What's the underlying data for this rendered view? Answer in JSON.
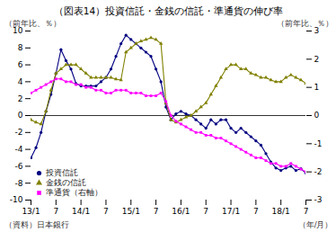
{
  "chart_data": {
    "type": "line",
    "title": "（図表14）投資信託・金銭の信託・準通貨の伸び率",
    "ylabel": "（前年比、％）",
    "y2label": "（前年比、％）",
    "xlabel": "（年/月）",
    "caption": "（資料）日本銀行",
    "categories": [
      "13/1",
      null,
      null,
      null,
      null,
      "7",
      null,
      null,
      null,
      null,
      "14/1",
      null,
      null,
      null,
      null,
      "7",
      null,
      null,
      null,
      null,
      "15/1",
      null,
      null,
      null,
      null,
      "7",
      null,
      null,
      null,
      null,
      "16/1",
      null,
      null,
      null,
      null,
      "7",
      null,
      null,
      null,
      null,
      "17/1",
      null,
      null,
      null,
      null,
      "7",
      null,
      null,
      null,
      null,
      "18/1",
      null,
      null,
      null,
      null,
      "7"
    ],
    "ylim": [
      -10,
      10
    ],
    "yticks": [
      -10,
      -8,
      -6,
      -4,
      -2,
      0,
      2,
      4,
      6,
      8,
      10
    ],
    "y2lim": [
      -3,
      3
    ],
    "y2ticks": [
      -3,
      -2,
      -1,
      0,
      1,
      2,
      3
    ],
    "grid": false,
    "legend": "lower left",
    "series": [
      {
        "name": "投資信託",
        "color": "#000080",
        "marker": "circle",
        "values": [
          -5.0,
          -3.8,
          -2.0,
          0.5,
          2.5,
          5.0,
          7.8,
          6.5,
          5.5,
          3.8,
          3.5,
          3.5,
          3.5,
          3.5,
          4.0,
          4.5,
          5.5,
          7.0,
          8.5,
          9.5,
          9.0,
          8.5,
          8.0,
          7.5,
          7.0,
          5.5,
          4.0,
          1.0,
          -0.5,
          0.2,
          0.5,
          0.2,
          0.0,
          -0.5,
          -1.0,
          -1.5,
          -0.5,
          -1.0,
          -0.5,
          -0.5,
          -1.5,
          -2.0,
          -1.5,
          -2.0,
          -2.5,
          -3.0,
          -3.5,
          -4.5,
          -5.5,
          -6.2,
          -6.5,
          -6.2,
          -6.0,
          -6.5,
          -6.3,
          -6.8
        ]
      },
      {
        "name": "金銭の信託",
        "color": "#808000",
        "marker": "triangle",
        "values": [
          -0.5,
          -0.8,
          -1.0,
          0.5,
          3.0,
          5.0,
          5.5,
          6.0,
          6.0,
          6.0,
          5.5,
          5.0,
          4.5,
          4.5,
          4.5,
          4.5,
          4.5,
          4.3,
          4.2,
          7.5,
          8.0,
          8.5,
          8.8,
          9.0,
          9.2,
          9.0,
          8.5,
          1.5,
          -0.5,
          -0.8,
          -0.5,
          -0.2,
          0.0,
          0.5,
          1.0,
          1.5,
          2.5,
          3.5,
          4.5,
          5.5,
          6.0,
          6.0,
          5.5,
          5.5,
          5.0,
          4.8,
          4.5,
          4.5,
          4.2,
          4.0,
          4.0,
          4.5,
          4.8,
          4.5,
          4.2,
          3.8
        ]
      },
      {
        "name": "準通貨（右軸）",
        "color": "#FF00FF",
        "marker": "square",
        "axis": "y2",
        "values": [
          0.8,
          0.9,
          1.0,
          1.1,
          1.2,
          1.3,
          1.3,
          1.2,
          1.2,
          1.1,
          1.1,
          1.0,
          1.0,
          0.9,
          0.9,
          0.8,
          0.8,
          0.9,
          0.9,
          0.9,
          0.8,
          0.8,
          0.8,
          0.7,
          0.7,
          0.7,
          0.8,
          0.5,
          0.0,
          -0.2,
          -0.3,
          -0.4,
          -0.5,
          -0.6,
          -0.6,
          -0.7,
          -0.7,
          -0.8,
          -0.8,
          -0.9,
          -1.0,
          -1.1,
          -1.2,
          -1.3,
          -1.4,
          -1.5,
          -1.5,
          -1.6,
          -1.7,
          -1.7,
          -1.8,
          -1.8,
          -1.7,
          -1.8,
          -1.9,
          -2.0
        ]
      }
    ]
  }
}
